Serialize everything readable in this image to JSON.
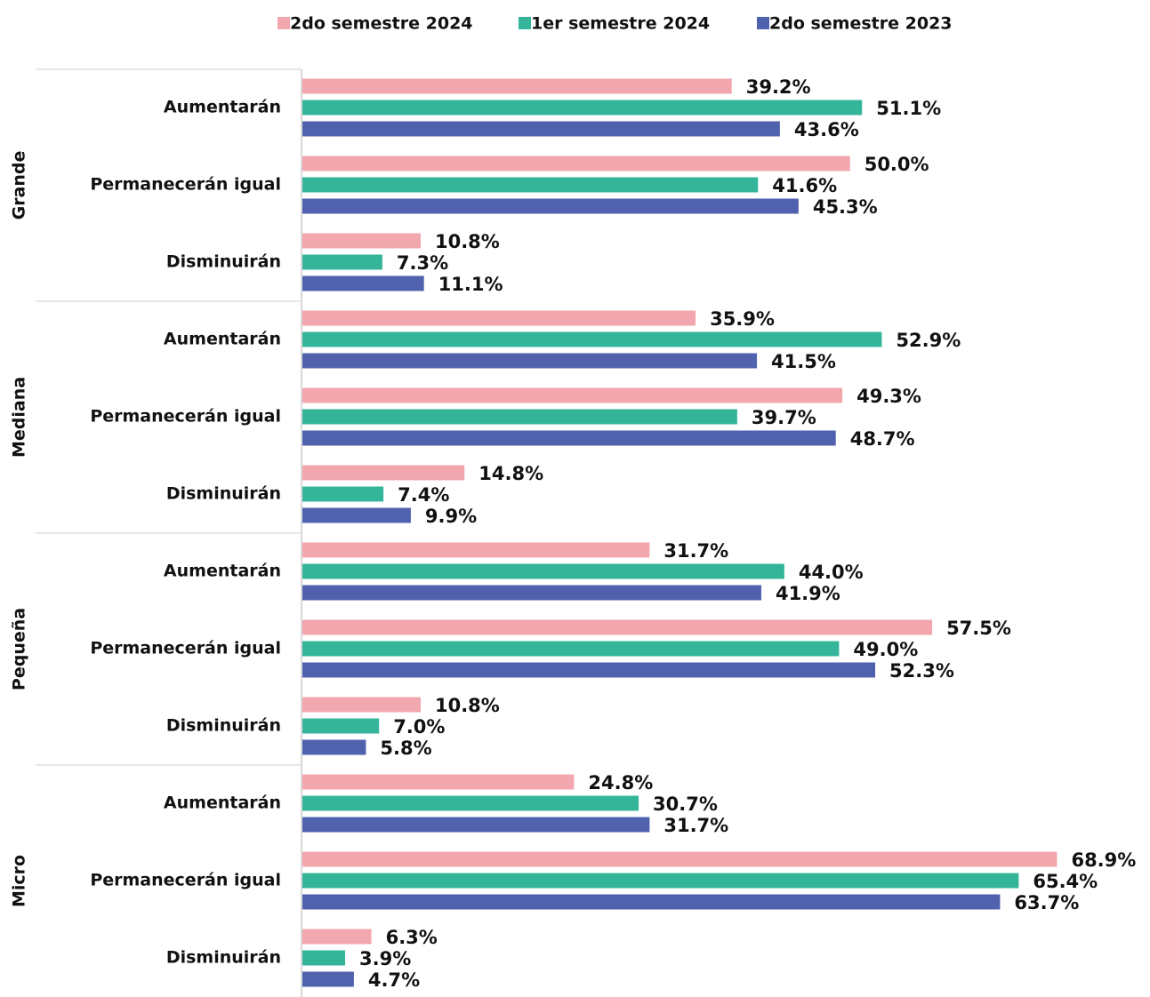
{
  "chart_data": {
    "type": "bar",
    "orientation": "horizontal",
    "groups": [
      "Grande",
      "Mediana",
      "Pequeña",
      "Micro"
    ],
    "categories": [
      "Aumentarán",
      "Permanecerán igual",
      "Disminuirán",
      "Aumentarán",
      "Permanecerán igual",
      "Disminuirán",
      "Aumentarán",
      "Permanecerán igual",
      "Disminuirán",
      "Aumentarán",
      "Permanecerán igual",
      "Disminuirán"
    ],
    "xlim": [
      0,
      70
    ],
    "series": [
      {
        "name": "2do semestre 2024",
        "color": "#f2a7ae",
        "values": [
          39.2,
          50.0,
          10.8,
          35.9,
          49.3,
          14.8,
          31.7,
          57.5,
          10.8,
          24.8,
          68.9,
          6.3
        ],
        "value_labels": [
          "39.2%",
          "50.0%",
          "10.8%",
          "35.9%",
          "49.3%",
          "14.8%",
          "31.7%",
          "57.5%",
          "10.8%",
          "24.8%",
          "68.9%",
          "6.3%"
        ]
      },
      {
        "name": "1er semestre 2024",
        "color": "#34b59a",
        "values": [
          51.1,
          41.6,
          7.3,
          52.9,
          39.7,
          7.4,
          44.0,
          49.0,
          7.0,
          30.7,
          65.4,
          3.9
        ],
        "value_labels": [
          "51.1%",
          "41.6%",
          "7.3%",
          "52.9%",
          "39.7%",
          "7.4%",
          "44.0%",
          "49.0%",
          "7.0%",
          "30.7%",
          "65.4%",
          "3.9%"
        ]
      },
      {
        "name": "2do semestre 2023",
        "color": "#5062ad",
        "values": [
          43.6,
          45.3,
          11.1,
          41.5,
          48.7,
          9.9,
          41.9,
          52.3,
          5.8,
          31.7,
          63.7,
          4.7
        ],
        "value_labels": [
          "43.6%",
          "45.3%",
          "11.1%",
          "41.5%",
          "48.7%",
          "9.9%",
          "41.9%",
          "52.3%",
          "5.8%",
          "31.7%",
          "63.7%",
          "4.7%"
        ]
      }
    ]
  }
}
